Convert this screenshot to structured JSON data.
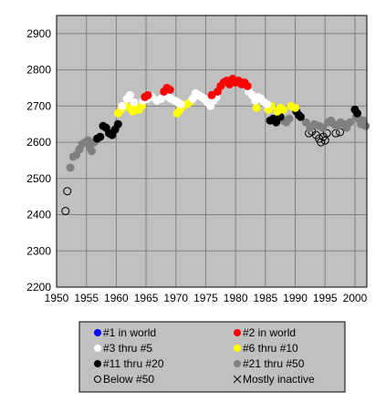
{
  "chart_data": {
    "type": "scatter",
    "xlim": [
      1950,
      2002
    ],
    "ylim": [
      2200,
      2950
    ],
    "x_ticks": [
      "1950",
      "1955",
      "1960",
      "1965",
      "1970",
      "1975",
      "1980",
      "1985",
      "1990",
      "1995",
      "2000"
    ],
    "y_ticks": [
      "2200",
      "2300",
      "2400",
      "2500",
      "2600",
      "2700",
      "2800",
      "2900"
    ],
    "grid": true,
    "legend_position": "bottom",
    "colors": {
      "plot_background": "#c0c0c0",
      "gridline": "#808080",
      "world_1": "#0000ff",
      "world_2": "#ff0000",
      "rank_3_5": "#ffffff",
      "rank_6_10": "#ffff00",
      "rank_11_20": "#000000",
      "rank_21_50": "#808080"
    },
    "legend": [
      {
        "key": "world_1",
        "label": "#1 in world",
        "marker": "filled",
        "color": "#0000ff"
      },
      {
        "key": "world_2",
        "label": "#2 in world",
        "marker": "filled",
        "color": "#ff0000"
      },
      {
        "key": "rank_3_5",
        "label": "#3 thru #5",
        "marker": "filled",
        "color": "#ffffff"
      },
      {
        "key": "rank_6_10",
        "label": "#6 thru #10",
        "marker": "filled",
        "color": "#ffff00"
      },
      {
        "key": "rank_11_20",
        "label": "#11 thru #20",
        "marker": "filled",
        "color": "#000000"
      },
      {
        "key": "rank_21_50",
        "label": "#21 thru #50",
        "marker": "filled",
        "color": "#808080"
      },
      {
        "key": "below_50",
        "label": "Below #50",
        "marker": "open-circle",
        "color": "#000000"
      },
      {
        "key": "inactive",
        "label": "Mostly inactive",
        "marker": "cross",
        "color": "#000000"
      }
    ],
    "series": [
      {
        "key": "below_50",
        "points": [
          [
            1951.5,
            2410
          ],
          [
            1951.8,
            2465
          ],
          [
            1992.3,
            2625
          ],
          [
            1992.8,
            2630
          ],
          [
            1993.5,
            2620
          ],
          [
            1994.0,
            2610
          ],
          [
            1994.3,
            2600
          ],
          [
            1994.7,
            2615
          ],
          [
            1995.0,
            2605
          ],
          [
            1995.3,
            2625
          ],
          [
            1996.8,
            2625
          ],
          [
            1997.5,
            2628
          ]
        ]
      },
      {
        "key": "rank_21_50",
        "points": [
          [
            1952.3,
            2530
          ],
          [
            1952.8,
            2560
          ],
          [
            1953.3,
            2565
          ],
          [
            1953.8,
            2580
          ],
          [
            1954.3,
            2595
          ],
          [
            1954.8,
            2600
          ],
          [
            1955.3,
            2605
          ],
          [
            1955.6,
            2585
          ],
          [
            1955.9,
            2575
          ],
          [
            1956.3,
            2600
          ],
          [
            1988.0,
            2660
          ],
          [
            1988.5,
            2655
          ],
          [
            1989.0,
            2665
          ],
          [
            1991.8,
            2655
          ],
          [
            1992.5,
            2640
          ],
          [
            1993.2,
            2650
          ],
          [
            1994.0,
            2645
          ],
          [
            1994.6,
            2640
          ],
          [
            1995.5,
            2655
          ],
          [
            1996.0,
            2660
          ],
          [
            1996.5,
            2650
          ],
          [
            1997.0,
            2645
          ],
          [
            1997.6,
            2655
          ],
          [
            1998.1,
            2650
          ],
          [
            1998.6,
            2640
          ],
          [
            1999.2,
            2655
          ],
          [
            2000.2,
            2670
          ],
          [
            2000.6,
            2665
          ],
          [
            2001.0,
            2650
          ],
          [
            2001.4,
            2660
          ],
          [
            2001.8,
            2645
          ]
        ]
      },
      {
        "key": "rank_11_20",
        "points": [
          [
            1956.8,
            2610
          ],
          [
            1957.3,
            2615
          ],
          [
            1957.8,
            2645
          ],
          [
            1958.3,
            2640
          ],
          [
            1958.8,
            2625
          ],
          [
            1959.3,
            2620
          ],
          [
            1959.8,
            2635
          ],
          [
            1960.3,
            2650
          ],
          [
            1985.8,
            2660
          ],
          [
            1986.3,
            2665
          ],
          [
            1986.8,
            2655
          ],
          [
            1987.5,
            2670
          ],
          [
            1990.2,
            2685
          ],
          [
            1990.6,
            2675
          ],
          [
            1990.9,
            2670
          ],
          [
            2000.0,
            2690
          ],
          [
            2000.4,
            2680
          ]
        ]
      },
      {
        "key": "rank_6_10",
        "points": [
          [
            1960.3,
            2680
          ],
          [
            1960.8,
            2690
          ],
          [
            1961.5,
            2700
          ],
          [
            1962.3,
            2695
          ],
          [
            1962.8,
            2685
          ],
          [
            1963.3,
            2695
          ],
          [
            1963.8,
            2690
          ],
          [
            1964.3,
            2700
          ],
          [
            1970.2,
            2680
          ],
          [
            1970.7,
            2690
          ],
          [
            1971.2,
            2700
          ],
          [
            1971.8,
            2705
          ],
          [
            1972.3,
            2710
          ],
          [
            1983.5,
            2695
          ],
          [
            1985.5,
            2690
          ],
          [
            1986.0,
            2700
          ],
          [
            1987.0,
            2685
          ],
          [
            1987.5,
            2695
          ],
          [
            1988.0,
            2690
          ],
          [
            1989.3,
            2700
          ],
          [
            1990.0,
            2695
          ]
        ]
      },
      {
        "key": "rank_3_5",
        "points": [
          [
            1961.0,
            2700
          ],
          [
            1961.8,
            2720
          ],
          [
            1962.3,
            2730
          ],
          [
            1963.0,
            2710
          ],
          [
            1964.5,
            2715
          ],
          [
            1965.2,
            2720
          ],
          [
            1966.0,
            2725
          ],
          [
            1966.8,
            2715
          ],
          [
            1967.5,
            2720
          ],
          [
            1968.3,
            2730
          ],
          [
            1968.8,
            2725
          ],
          [
            1969.2,
            2720
          ],
          [
            1969.8,
            2715
          ],
          [
            1970.3,
            2710
          ],
          [
            1970.8,
            2705
          ],
          [
            1972.8,
            2720
          ],
          [
            1973.3,
            2735
          ],
          [
            1973.8,
            2730
          ],
          [
            1974.3,
            2725
          ],
          [
            1974.8,
            2720
          ],
          [
            1975.3,
            2710
          ],
          [
            1975.8,
            2700
          ],
          [
            1976.3,
            2715
          ],
          [
            1976.8,
            2725
          ],
          [
            1982.2,
            2740
          ],
          [
            1982.8,
            2730
          ],
          [
            1983.3,
            2715
          ],
          [
            1983.8,
            2725
          ],
          [
            1984.3,
            2720
          ],
          [
            1984.8,
            2710
          ],
          [
            1985.3,
            2705
          ]
        ]
      },
      {
        "key": "world_2",
        "points": [
          [
            1964.8,
            2725
          ],
          [
            1965.3,
            2730
          ],
          [
            1968.0,
            2740
          ],
          [
            1968.5,
            2750
          ],
          [
            1969.0,
            2745
          ],
          [
            1976.0,
            2730
          ],
          [
            1977.0,
            2740
          ],
          [
            1977.5,
            2755
          ],
          [
            1978.0,
            2765
          ],
          [
            1978.5,
            2770
          ],
          [
            1979.0,
            2760
          ],
          [
            1979.5,
            2775
          ],
          [
            1980.0,
            2765
          ],
          [
            1980.5,
            2770
          ],
          [
            1981.0,
            2760
          ],
          [
            1981.5,
            2765
          ],
          [
            1982.0,
            2755
          ]
        ]
      }
    ]
  }
}
